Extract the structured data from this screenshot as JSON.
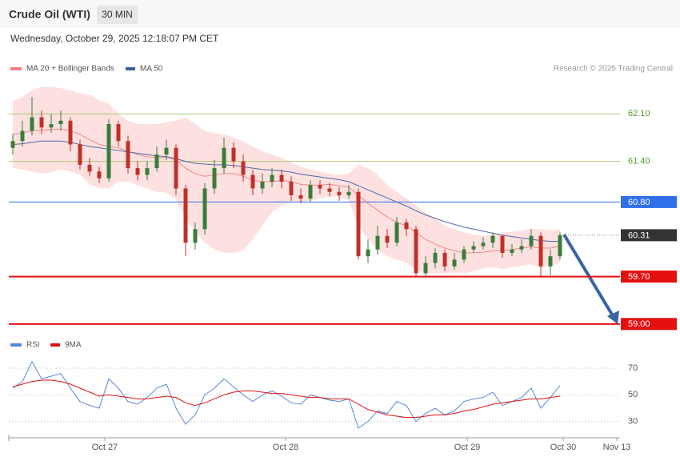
{
  "chart_data": {
    "type": "candlestick",
    "title": "Crude Oil (WTI)",
    "timeframe": "30 MIN",
    "subtitle": "Wednesday, October 29, 2025 12:18:07 PM CET",
    "source": "Research © 2025 Trading Central",
    "up_color": "#3a7d3a",
    "down_color": "#c0302a",
    "ylim": [
      58.88,
      62.6
    ],
    "xticks": [
      "Oct 27",
      "Oct 28",
      "Oct 29",
      "Oct 30",
      "Nov 13"
    ],
    "open": [
      61.6,
      61.7,
      61.85,
      62.05,
      61.9,
      61.95,
      62.0,
      61.65,
      61.35,
      61.25,
      61.15,
      61.95,
      61.7,
      61.3,
      61.2,
      61.3,
      61.5,
      61.6,
      61.0,
      60.2,
      60.4,
      61.0,
      61.3,
      61.6,
      61.4,
      61.2,
      61.0,
      61.1,
      61.2,
      61.1,
      60.9,
      60.85,
      61.05,
      61.0,
      60.95,
      60.9,
      60.95,
      60.0,
      60.1,
      60.3,
      60.2,
      60.5,
      60.4,
      59.75,
      59.9,
      60.05,
      59.85,
      59.95,
      60.1,
      60.15,
      60.2,
      60.3,
      60.05,
      60.1,
      60.15,
      60.3,
      59.85,
      60.0
    ],
    "high": [
      61.8,
      62.0,
      62.35,
      62.15,
      62.1,
      62.15,
      62.05,
      61.72,
      61.45,
      61.32,
      62.02,
      62.0,
      61.78,
      61.4,
      61.4,
      61.62,
      61.72,
      61.65,
      61.05,
      60.5,
      61.08,
      61.42,
      61.75,
      61.68,
      61.5,
      61.28,
      61.22,
      61.3,
      61.28,
      61.18,
      61.0,
      61.12,
      61.12,
      61.08,
      61.02,
      61.05,
      61.0,
      60.25,
      60.45,
      60.4,
      60.58,
      60.55,
      60.45,
      60.0,
      60.12,
      60.1,
      60.05,
      60.15,
      60.22,
      60.28,
      60.35,
      60.32,
      60.18,
      60.25,
      60.4,
      60.35,
      60.1,
      60.35
    ],
    "low": [
      61.5,
      61.62,
      61.78,
      61.8,
      61.82,
      61.85,
      61.55,
      61.28,
      61.18,
      61.08,
      61.1,
      61.62,
      61.22,
      61.12,
      61.12,
      61.25,
      61.42,
      60.9,
      60.0,
      60.1,
      60.32,
      60.92,
      61.22,
      61.3,
      61.1,
      60.9,
      60.92,
      61.02,
      61.0,
      60.82,
      60.78,
      60.8,
      60.92,
      60.88,
      60.82,
      60.85,
      59.95,
      59.9,
      60.02,
      60.12,
      60.15,
      60.3,
      59.7,
      59.68,
      59.82,
      59.78,
      59.8,
      59.9,
      60.05,
      60.1,
      60.12,
      59.98,
      60.0,
      60.05,
      60.1,
      59.7,
      59.72,
      59.95
    ],
    "close": [
      61.7,
      61.85,
      62.05,
      61.9,
      61.95,
      62.0,
      61.65,
      61.35,
      61.25,
      61.15,
      61.95,
      61.7,
      61.3,
      61.2,
      61.3,
      61.5,
      61.6,
      61.0,
      60.2,
      60.4,
      61.0,
      61.3,
      61.6,
      61.4,
      61.2,
      61.0,
      61.1,
      61.2,
      61.1,
      60.9,
      60.85,
      61.05,
      61.0,
      60.95,
      60.9,
      60.95,
      60.0,
      60.1,
      60.3,
      60.2,
      60.5,
      60.4,
      59.75,
      59.9,
      60.05,
      59.85,
      59.95,
      60.1,
      60.15,
      60.2,
      60.3,
      60.05,
      60.1,
      60.15,
      60.3,
      59.85,
      60.0,
      60.31
    ],
    "series": [
      {
        "name": "MA 20 + Bollinger Bands",
        "color": "#f08080",
        "band_color": "#fde0e0",
        "values": [
          61.8,
          61.82,
          61.85,
          61.86,
          61.87,
          61.88,
          61.85,
          61.8,
          61.72,
          61.65,
          61.62,
          61.6,
          61.55,
          61.5,
          61.47,
          61.45,
          61.46,
          61.42,
          61.3,
          61.22,
          61.18,
          61.2,
          61.22,
          61.22,
          61.18,
          61.12,
          61.1,
          61.1,
          61.12,
          61.1,
          61.06,
          61.05,
          61.05,
          61.06,
          61.04,
          61.02,
          60.9,
          60.78,
          60.68,
          60.58,
          60.5,
          60.45,
          60.35,
          60.25,
          60.18,
          60.12,
          60.08,
          60.05,
          60.05,
          60.06,
          60.08,
          60.08,
          60.1,
          60.12,
          60.14,
          60.12,
          60.12,
          60.15
        ],
        "upper": [
          62.3,
          62.35,
          62.45,
          62.5,
          62.5,
          62.48,
          62.45,
          62.4,
          62.38,
          62.3,
          62.25,
          62.1,
          62.0,
          61.95,
          61.95,
          61.95,
          61.98,
          62.0,
          62.05,
          61.95,
          61.85,
          61.82,
          61.8,
          61.75,
          61.7,
          61.62,
          61.55,
          61.5,
          61.45,
          61.38,
          61.32,
          61.28,
          61.25,
          61.22,
          61.2,
          61.22,
          61.35,
          61.3,
          61.2,
          61.05,
          60.95,
          60.85,
          60.75,
          60.65,
          60.55,
          60.45,
          60.4,
          60.35,
          60.32,
          60.3,
          60.32,
          60.35,
          60.36,
          60.38,
          60.4,
          60.4,
          60.38,
          60.4
        ],
        "lower": [
          61.3,
          61.28,
          61.25,
          61.22,
          61.24,
          61.28,
          61.25,
          61.2,
          61.06,
          61.0,
          61.0,
          61.1,
          61.1,
          61.05,
          61.0,
          60.95,
          60.94,
          60.84,
          60.55,
          60.35,
          60.2,
          60.1,
          60.05,
          60.05,
          60.08,
          60.25,
          60.45,
          60.65,
          60.75,
          60.8,
          60.8,
          60.82,
          60.85,
          60.88,
          60.88,
          60.82,
          60.45,
          60.25,
          60.1,
          60.0,
          59.95,
          59.9,
          59.8,
          59.75,
          59.75,
          59.75,
          59.76,
          59.75,
          59.78,
          59.82,
          59.84,
          59.81,
          59.84,
          59.86,
          59.88,
          59.84,
          59.86,
          59.9
        ]
      },
      {
        "name": "MA 50",
        "color": "#3a5fa0",
        "values": [
          61.65,
          61.66,
          61.68,
          61.7,
          61.7,
          61.7,
          61.68,
          61.65,
          61.62,
          61.6,
          61.58,
          61.56,
          61.54,
          61.52,
          61.5,
          61.48,
          61.47,
          61.44,
          61.4,
          61.37,
          61.36,
          61.35,
          61.35,
          61.34,
          61.32,
          61.3,
          61.28,
          61.27,
          61.26,
          61.24,
          61.21,
          61.19,
          61.17,
          61.15,
          61.13,
          61.1,
          61.04,
          60.98,
          60.92,
          60.86,
          60.8,
          60.74,
          60.67,
          60.61,
          60.56,
          60.51,
          60.47,
          60.43,
          60.4,
          60.37,
          60.34,
          60.31,
          60.29,
          60.27,
          60.25,
          60.23,
          60.22,
          60.22
        ]
      }
    ],
    "levels": [
      {
        "value": 62.1,
        "label": "62.10",
        "color": "#5a9a2a",
        "line_color": "#a8c878",
        "style": "text"
      },
      {
        "value": 61.4,
        "label": "61.40",
        "color": "#5a9a2a",
        "line_color": "#a8c878",
        "style": "text"
      },
      {
        "value": 60.8,
        "label": "60.80",
        "color": "#2f6fe8",
        "line_color": "#2f6fe8",
        "style": "box"
      },
      {
        "value": 60.31,
        "color": "#333333",
        "line_color": "#888888",
        "style": "last"
      },
      {
        "value": 59.7,
        "label": "59.70",
        "color": "#e41010",
        "line_color": "#e41010",
        "style": "box"
      },
      {
        "value": 59.0,
        "label": "59.00",
        "color": "#e41010",
        "line_color": "#e41010",
        "style": "box"
      }
    ],
    "rsi": {
      "ylim": [
        19,
        82
      ],
      "yticks": [
        70,
        50,
        30
      ],
      "series": [
        {
          "name": "RSI",
          "color": "#5b86d8",
          "values": [
            55,
            60,
            75,
            62,
            64,
            66,
            55,
            45,
            42,
            40,
            62,
            55,
            45,
            43,
            48,
            55,
            58,
            40,
            28,
            35,
            50,
            55,
            62,
            56,
            50,
            45,
            50,
            53,
            49,
            44,
            43,
            50,
            48,
            46,
            45,
            47,
            25,
            30,
            38,
            36,
            45,
            42,
            30,
            36,
            40,
            35,
            38,
            45,
            47,
            48,
            52,
            42,
            45,
            48,
            55,
            40,
            48,
            57
          ]
        },
        {
          "name": "9MA",
          "color": "#e41010",
          "values": [
            56,
            58,
            60,
            61,
            61,
            60,
            58,
            55,
            52,
            49,
            50,
            49,
            48,
            47,
            47,
            48,
            49,
            48,
            44,
            42,
            44,
            47,
            50,
            52,
            53,
            53,
            52,
            51,
            51,
            50,
            49,
            48,
            48,
            47,
            47,
            47,
            43,
            39,
            37,
            35,
            34,
            33,
            33,
            34,
            35,
            35,
            36,
            38,
            39,
            41,
            43,
            44,
            45,
            46,
            47,
            47,
            48,
            49
          ]
        }
      ]
    }
  }
}
